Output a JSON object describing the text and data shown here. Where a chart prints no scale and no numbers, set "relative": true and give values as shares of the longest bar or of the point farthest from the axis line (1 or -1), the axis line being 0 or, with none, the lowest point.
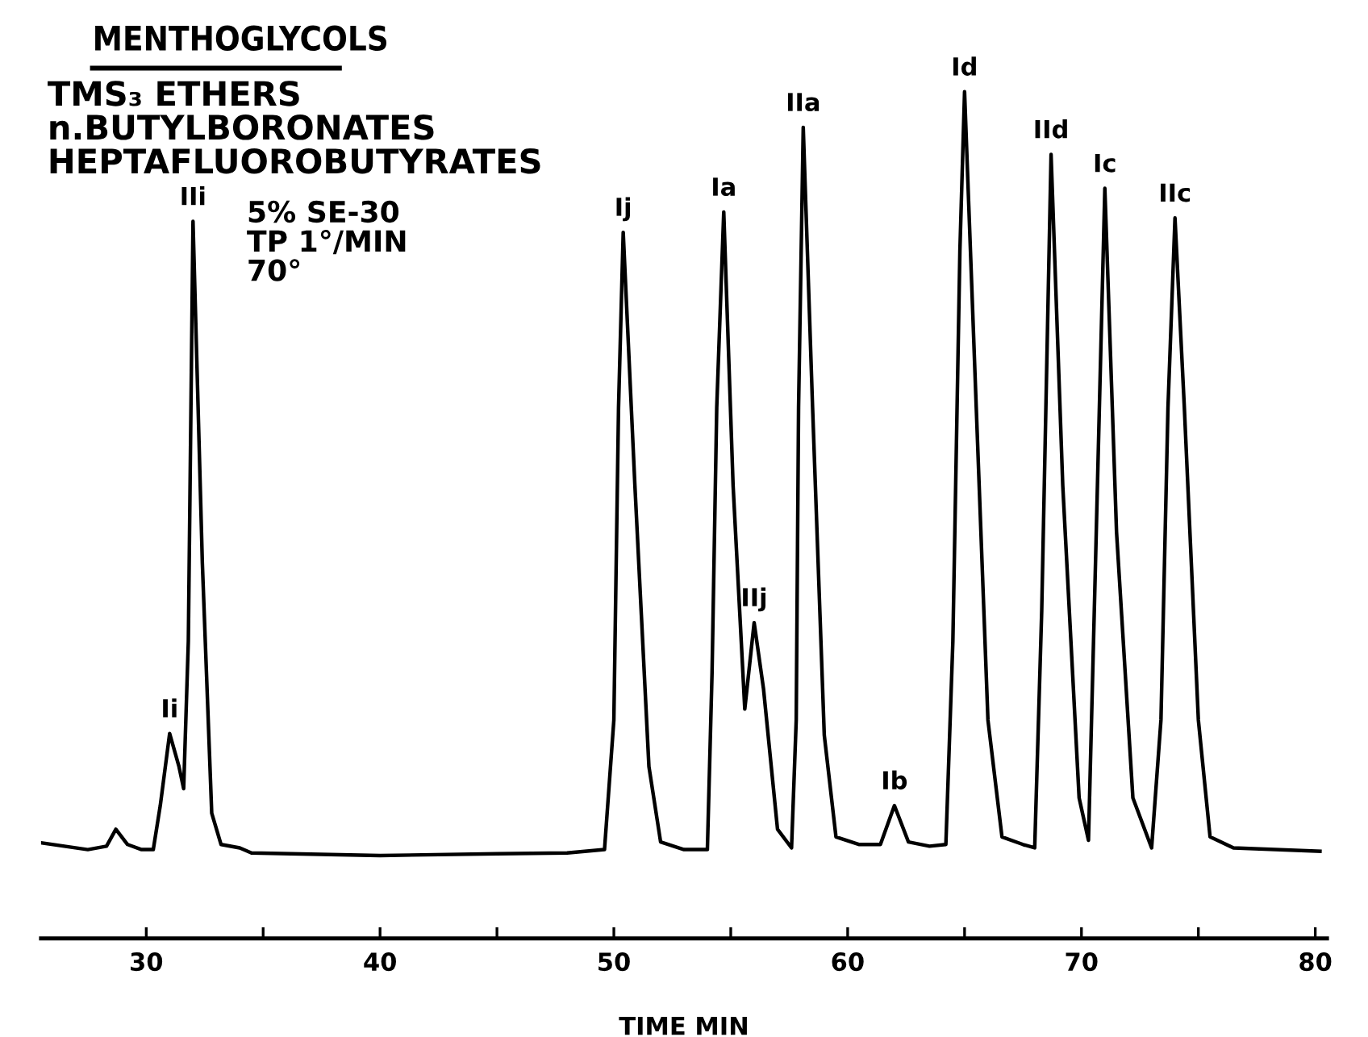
{
  "chart_data": {
    "type": "line",
    "relative": true,
    "title": "MENTHOGLYCOLS",
    "xlabel": "TIME MIN",
    "annotations": [
      "TMS₃ ETHERS\nn.BUTYLBORONATES\nHEPTAFLUOROBUTYRATES",
      "5% SE-30\nTP 1°/MIN\n70°",
      {
        "text": "Ii",
        "x": 31.0,
        "y": 0.242
      },
      {
        "text": "IIi",
        "x": 32.0,
        "y": 0.847
      },
      {
        "text": "Ij",
        "x": 50.4,
        "y": 0.834
      },
      {
        "text": "Ia",
        "x": 54.7,
        "y": 0.858
      },
      {
        "text": "IIj",
        "x": 56.0,
        "y": 0.373
      },
      {
        "text": "IIa",
        "x": 58.1,
        "y": 0.958
      },
      {
        "text": "Ib",
        "x": 62.0,
        "y": 0.157
      },
      {
        "text": "Id",
        "x": 65.0,
        "y": 1
      },
      {
        "text": "IId",
        "x": 68.7,
        "y": 0.926
      },
      {
        "text": "Ic",
        "x": 71.0,
        "y": 0.886
      },
      {
        "text": "IIc",
        "x": 74.0,
        "y": 0.851
      }
    ],
    "xlim": [
      25.5,
      80.5
    ],
    "xticks": [
      30,
      {
        "value": 35,
        "label": null
      },
      40,
      {
        "value": 45,
        "label": null
      },
      50,
      {
        "value": 55,
        "label": null
      },
      60,
      {
        "value": 65,
        "label": null
      },
      70,
      {
        "value": 75,
        "label": null
      },
      80
    ],
    "marker": "none",
    "line_style": "solid",
    "series": [
      {
        "color": "#000000",
        "x": [
          25.5,
          27.5,
          28.3,
          28.7,
          29.2,
          29.8,
          30.3,
          30.6,
          31.0,
          31.4,
          31.6,
          31.8,
          32.0,
          32.4,
          32.8,
          33.2,
          34.0,
          34.5,
          40,
          45,
          48,
          49.6,
          50.0,
          50.2,
          50.4,
          50.9,
          51.5,
          52.0,
          53,
          54.0,
          54.2,
          54.4,
          54.7,
          55.1,
          55.6,
          56.0,
          56.4,
          57.0,
          57.6,
          57.8,
          57.9,
          58.1,
          58.5,
          59.0,
          59.5,
          60.5,
          61.4,
          62.0,
          62.6,
          63.5,
          64.2,
          64.5,
          64.8,
          65.0,
          65.5,
          66.0,
          66.6,
          67.5,
          68.0,
          68.3,
          68.7,
          69.2,
          69.9,
          70.3,
          70.6,
          71.0,
          71.5,
          72.2,
          73.0,
          73.4,
          73.7,
          74.0,
          74.4,
          75.0,
          75.5,
          76.5,
          80.2
        ],
        "values": [
          0.113,
          0.105,
          0.109,
          0.129,
          0.111,
          0.105,
          0.105,
          0.157,
          0.242,
          0.203,
          0.177,
          0.351,
          0.847,
          0.443,
          0.148,
          0.111,
          0.107,
          0.101,
          0.098,
          0.1,
          0.101,
          0.105,
          0.258,
          0.627,
          0.834,
          0.535,
          0.203,
          0.114,
          0.105,
          0.105,
          0.314,
          0.627,
          0.858,
          0.535,
          0.271,
          0.373,
          0.295,
          0.129,
          0.107,
          0.258,
          0.627,
          0.958,
          0.627,
          0.24,
          0.12,
          0.111,
          0.111,
          0.157,
          0.114,
          0.109,
          0.111,
          0.351,
          0.812,
          1,
          0.627,
          0.258,
          0.12,
          0.111,
          0.107,
          0.387,
          0.926,
          0.535,
          0.166,
          0.116,
          0.443,
          0.886,
          0.48,
          0.166,
          0.107,
          0.258,
          0.627,
          0.851,
          0.627,
          0.258,
          0.12,
          0.107,
          0.103
        ]
      }
    ]
  }
}
